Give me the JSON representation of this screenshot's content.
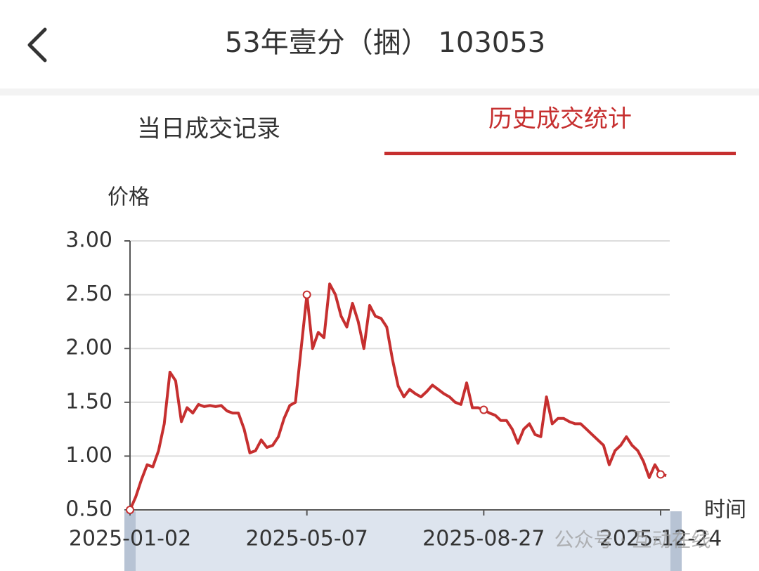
{
  "header": {
    "title": "53年壹分（捆） 103053"
  },
  "tabs": [
    "当日成交记录",
    "历史成交统计"
  ],
  "watermark": "公众号 · 互动在线",
  "chart_data": {
    "type": "line",
    "y_label": "价格",
    "x_label": "时间",
    "color": "#c62f2f",
    "grid": true,
    "ylim": [
      0.5,
      3.0
    ],
    "yticks": [
      {
        "value": 0.5,
        "label": "0.50"
      },
      {
        "value": 1.0,
        "label": "1.00"
      },
      {
        "value": 1.5,
        "label": "1.50"
      },
      {
        "value": 2.0,
        "label": "2.00"
      },
      {
        "value": 2.5,
        "label": "2.50"
      },
      {
        "value": 3.0,
        "label": "3.00"
      }
    ],
    "categories": [
      "2025-01-02",
      null,
      null,
      null,
      null,
      null,
      null,
      null,
      null,
      null,
      null,
      null,
      null,
      null,
      null,
      null,
      null,
      null,
      null,
      null,
      null,
      null,
      null,
      null,
      null,
      null,
      null,
      null,
      null,
      null,
      null,
      "2025-05-07",
      null,
      null,
      null,
      null,
      null,
      null,
      null,
      null,
      null,
      null,
      null,
      null,
      null,
      null,
      null,
      null,
      null,
      null,
      null,
      null,
      null,
      null,
      null,
      null,
      null,
      null,
      null,
      null,
      null,
      null,
      "2025-08-27",
      null,
      null,
      null,
      null,
      null,
      null,
      null,
      null,
      null,
      null,
      null,
      null,
      null,
      null,
      null,
      null,
      null,
      null,
      null,
      null,
      null,
      null,
      null,
      null,
      null,
      null,
      null,
      null,
      null,
      null,
      "2025-12-24",
      null
    ],
    "values": [
      0.5,
      0.62,
      0.78,
      0.92,
      0.9,
      1.05,
      1.3,
      1.78,
      1.7,
      1.32,
      1.45,
      1.4,
      1.48,
      1.46,
      1.47,
      1.46,
      1.47,
      1.42,
      1.4,
      1.4,
      1.25,
      1.03,
      1.05,
      1.15,
      1.08,
      1.1,
      1.18,
      1.35,
      1.47,
      1.5,
      2.0,
      2.5,
      2.0,
      2.15,
      2.1,
      2.6,
      2.5,
      2.3,
      2.2,
      2.42,
      2.25,
      2.0,
      2.4,
      2.3,
      2.28,
      2.2,
      1.9,
      1.65,
      1.55,
      1.62,
      1.58,
      1.55,
      1.6,
      1.66,
      1.62,
      1.58,
      1.55,
      1.5,
      1.48,
      1.68,
      1.45,
      1.45,
      1.43,
      1.4,
      1.38,
      1.33,
      1.33,
      1.25,
      1.12,
      1.25,
      1.3,
      1.2,
      1.18,
      1.55,
      1.3,
      1.35,
      1.35,
      1.32,
      1.3,
      1.3,
      1.25,
      1.2,
      1.15,
      1.1,
      0.92,
      1.05,
      1.1,
      1.18,
      1.1,
      1.05,
      0.95,
      0.8,
      0.92,
      0.83,
      0.82
    ]
  }
}
